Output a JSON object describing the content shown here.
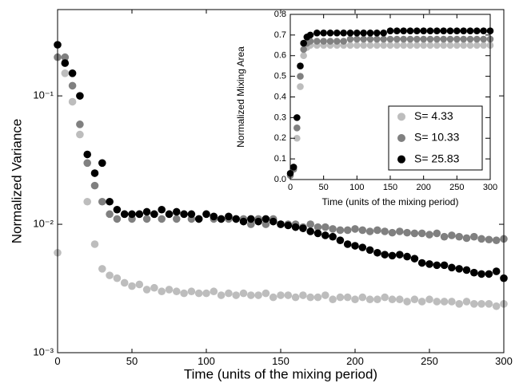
{
  "chart_data": [
    {
      "type": "scatter",
      "xlabel": "Time (units of the mixing period)",
      "ylabel": "Normalized Variance",
      "log_y": true,
      "xlim": [
        0,
        300
      ],
      "ylim": [
        0.001,
        0.47
      ],
      "xticks": [
        0,
        50,
        100,
        150,
        200,
        250,
        300
      ],
      "yticks": [
        {
          "value": 0.001,
          "label": "10⁻³"
        },
        {
          "value": 0.01,
          "label": "10⁻²"
        },
        {
          "value": 0.1,
          "label": "10⁻¹"
        }
      ],
      "x": [
        0,
        5,
        10,
        15,
        20,
        25,
        30,
        35,
        40,
        45,
        50,
        55,
        60,
        65,
        70,
        75,
        80,
        85,
        90,
        95,
        100,
        105,
        110,
        115,
        120,
        125,
        130,
        135,
        140,
        145,
        150,
        155,
        160,
        165,
        170,
        175,
        180,
        185,
        190,
        195,
        200,
        205,
        210,
        215,
        220,
        225,
        230,
        235,
        240,
        245,
        250,
        255,
        260,
        265,
        270,
        275,
        280,
        285,
        290,
        295,
        300
      ],
      "series": [
        {
          "name": "S= 4.33",
          "color": "#bdbdbd",
          "values": [
            0.006,
            0.15,
            0.09,
            0.05,
            0.015,
            0.007,
            0.0045,
            0.004,
            0.0038,
            0.0035,
            0.0033,
            0.0034,
            0.0031,
            0.0032,
            0.003,
            0.0031,
            0.003,
            0.0029,
            0.003,
            0.0029,
            0.0029,
            0.003,
            0.0028,
            0.0029,
            0.0028,
            0.0029,
            0.0028,
            0.0028,
            0.0029,
            0.0027,
            0.0028,
            0.0028,
            0.0027,
            0.0028,
            0.0027,
            0.0027,
            0.0028,
            0.0026,
            0.0027,
            0.0027,
            0.0026,
            0.0027,
            0.0026,
            0.0026,
            0.0027,
            0.0026,
            0.0026,
            0.0025,
            0.0026,
            0.0025,
            0.0026,
            0.0025,
            0.0025,
            0.0025,
            0.0024,
            0.0025,
            0.0024,
            0.0024,
            0.0024,
            0.0023,
            0.0024
          ]
        },
        {
          "name": "S= 10.33",
          "color": "#808080",
          "values": [
            0.2,
            0.2,
            0.12,
            0.06,
            0.03,
            0.02,
            0.015,
            0.012,
            0.011,
            0.012,
            0.011,
            0.012,
            0.011,
            0.012,
            0.011,
            0.012,
            0.011,
            0.012,
            0.011,
            0.011,
            0.012,
            0.011,
            0.011,
            0.011,
            0.011,
            0.011,
            0.01,
            0.011,
            0.01,
            0.011,
            0.01,
            0.01,
            0.01,
            0.0095,
            0.01,
            0.0095,
            0.0095,
            0.0092,
            0.009,
            0.009,
            0.0092,
            0.009,
            0.0088,
            0.009,
            0.0088,
            0.0086,
            0.0088,
            0.0086,
            0.0085,
            0.0085,
            0.0083,
            0.0085,
            0.008,
            0.0082,
            0.008,
            0.0078,
            0.008,
            0.0077,
            0.0076,
            0.0075,
            0.0077
          ]
        },
        {
          "name": "S= 25.83",
          "color": "#000000",
          "values": [
            0.25,
            0.18,
            0.15,
            0.1,
            0.035,
            0.025,
            0.03,
            0.015,
            0.013,
            0.012,
            0.012,
            0.012,
            0.0125,
            0.012,
            0.013,
            0.012,
            0.0125,
            0.012,
            0.012,
            0.011,
            0.012,
            0.0115,
            0.011,
            0.0115,
            0.011,
            0.0105,
            0.011,
            0.0105,
            0.011,
            0.0105,
            0.01,
            0.0098,
            0.0095,
            0.0093,
            0.0088,
            0.0085,
            0.0082,
            0.008,
            0.0075,
            0.007,
            0.0068,
            0.0066,
            0.0063,
            0.006,
            0.0058,
            0.0057,
            0.0058,
            0.0056,
            0.0054,
            0.005,
            0.0049,
            0.0048,
            0.0048,
            0.0046,
            0.0045,
            0.0044,
            0.0042,
            0.0041,
            0.0041,
            0.0043,
            0.0038
          ]
        }
      ]
    },
    {
      "type": "scatter",
      "xlabel": "Time (units of the mixing period)",
      "ylabel": "Normalized Mixing Area",
      "legend": "lower right",
      "xlim": [
        0,
        300
      ],
      "ylim": [
        0,
        0.8
      ],
      "xticks": [
        0,
        50,
        100,
        150,
        200,
        250,
        300
      ],
      "yticks": [
        {
          "value": 0,
          "label": "0.0"
        },
        0.1,
        0.2,
        0.3,
        0.4,
        0.5,
        0.6,
        0.7,
        0.8
      ],
      "x": [
        0,
        5,
        10,
        15,
        20,
        25,
        30,
        40,
        50,
        60,
        70,
        80,
        90,
        100,
        110,
        120,
        130,
        140,
        150,
        160,
        170,
        180,
        190,
        200,
        210,
        220,
        230,
        240,
        250,
        260,
        270,
        280,
        290,
        300
      ],
      "series": [
        {
          "name": "S= 4.33",
          "color": "#bdbdbd",
          "values": [
            0.02,
            0.05,
            0.2,
            0.45,
            0.6,
            0.64,
            0.65,
            0.65,
            0.65,
            0.65,
            0.65,
            0.65,
            0.65,
            0.65,
            0.65,
            0.65,
            0.65,
            0.65,
            0.65,
            0.65,
            0.65,
            0.65,
            0.65,
            0.65,
            0.65,
            0.65,
            0.65,
            0.65,
            0.65,
            0.65,
            0.65,
            0.65,
            0.65,
            0.65
          ]
        },
        {
          "name": "S= 10.33",
          "color": "#808080",
          "values": [
            0.02,
            0.05,
            0.25,
            0.5,
            0.63,
            0.66,
            0.67,
            0.67,
            0.67,
            0.67,
            0.67,
            0.67,
            0.68,
            0.68,
            0.68,
            0.68,
            0.68,
            0.68,
            0.68,
            0.68,
            0.68,
            0.68,
            0.68,
            0.68,
            0.68,
            0.68,
            0.68,
            0.68,
            0.68,
            0.68,
            0.68,
            0.68,
            0.68,
            0.68
          ]
        },
        {
          "name": "S= 25.83",
          "color": "#000000",
          "values": [
            0.03,
            0.06,
            0.3,
            0.55,
            0.66,
            0.69,
            0.7,
            0.71,
            0.71,
            0.71,
            0.71,
            0.71,
            0.71,
            0.71,
            0.71,
            0.71,
            0.71,
            0.71,
            0.72,
            0.72,
            0.72,
            0.72,
            0.72,
            0.72,
            0.72,
            0.72,
            0.72,
            0.72,
            0.72,
            0.72,
            0.72,
            0.72,
            0.72,
            0.72
          ]
        }
      ]
    }
  ]
}
